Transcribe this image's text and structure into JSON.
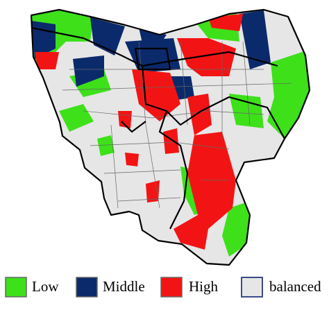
{
  "legend": {
    "items": [
      {
        "label": "Low"
      },
      {
        "label": "Middle"
      },
      {
        "label": "High"
      },
      {
        "label": "balanced"
      }
    ]
  }
}
